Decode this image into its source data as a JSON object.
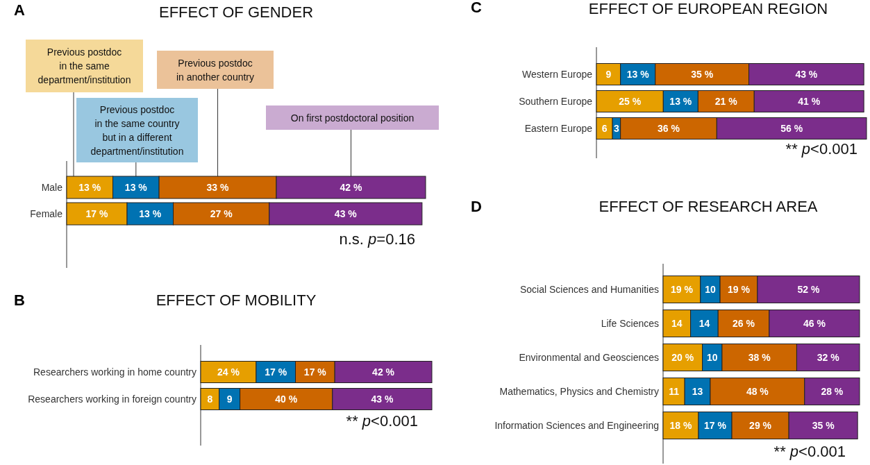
{
  "chart_data": [
    {
      "type": "bar",
      "orientation": "horizontal",
      "stacked": true,
      "title": "EFFECT OF GENDER",
      "legend": "top",
      "categories": [
        "Male",
        "Female"
      ],
      "annotations": [
        "A",
        "n.s. p=0.16"
      ],
      "series": [
        {
          "name": "Previous postdoc\nin the same\ndepartment/institution",
          "color": "#e69f00",
          "values": [
            13,
            17
          ],
          "value_labels": [
            "13 %",
            "17 %"
          ]
        },
        {
          "name": "Previous postdoc\nin the same country\nbut in a different\ndepartment/institution",
          "color": "#0072b2",
          "values": [
            13,
            13
          ],
          "value_labels": [
            "13 %",
            "13 %"
          ]
        },
        {
          "name": "Previous postdoc\nin another country",
          "color": "#cc6600",
          "values": [
            33,
            27
          ],
          "value_labels": [
            "33 %",
            "27 %"
          ]
        },
        {
          "name": "On first postdoctoral position",
          "color": "#7b2d8b",
          "values": [
            42,
            43
          ],
          "value_labels": [
            "42 %",
            "43 %"
          ]
        }
      ]
    },
    {
      "type": "bar",
      "orientation": "horizontal",
      "stacked": true,
      "title": "EFFECT OF MOBILITY",
      "categories": [
        "Researchers working in home country",
        "Researchers working in foreign country"
      ],
      "annotations": [
        "B",
        "** p<0.001"
      ],
      "series": [
        {
          "color": "#e69f00",
          "values": [
            24,
            8
          ],
          "value_labels": [
            "24 %",
            "8"
          ]
        },
        {
          "color": "#0072b2",
          "values": [
            17,
            9
          ],
          "value_labels": [
            "17 %",
            "9"
          ]
        },
        {
          "color": "#cc6600",
          "values": [
            17,
            40
          ],
          "value_labels": [
            "17 %",
            "40 %"
          ]
        },
        {
          "color": "#7b2d8b",
          "values": [
            42,
            43
          ],
          "value_labels": [
            "42 %",
            "43 %"
          ]
        }
      ]
    },
    {
      "type": "bar",
      "orientation": "horizontal",
      "stacked": true,
      "title": "EFFECT OF EUROPEAN REGION",
      "categories": [
        "Western Europe",
        "Southern Europe",
        "Eastern Europe"
      ],
      "annotations": [
        "C",
        "** p<0.001"
      ],
      "series": [
        {
          "color": "#e69f00",
          "values": [
            9,
            25,
            6
          ],
          "value_labels": [
            "9",
            "25 %",
            "6"
          ]
        },
        {
          "color": "#0072b2",
          "values": [
            13,
            13,
            3
          ],
          "value_labels": [
            "13 %",
            "13 %",
            "3"
          ]
        },
        {
          "color": "#cc6600",
          "values": [
            35,
            21,
            36
          ],
          "value_labels": [
            "35 %",
            "21 %",
            "36 %"
          ]
        },
        {
          "color": "#7b2d8b",
          "values": [
            43,
            41,
            56
          ],
          "value_labels": [
            "43 %",
            "41 %",
            "56 %"
          ]
        }
      ]
    },
    {
      "type": "bar",
      "orientation": "horizontal",
      "stacked": true,
      "title": "EFFECT OF RESEARCH AREA",
      "categories": [
        "Social Sciences and Humanities",
        "Life Sciences",
        "Environmental and Geosciences",
        "Mathematics, Physics and Chemistry",
        "Information Sciences and Engineering"
      ],
      "annotations": [
        "D",
        "** p<0.001"
      ],
      "series": [
        {
          "color": "#e69f00",
          "values": [
            19,
            14,
            20,
            11,
            18
          ],
          "value_labels": [
            "19 %",
            "14",
            "20 %",
            "11",
            "18 %"
          ]
        },
        {
          "color": "#0072b2",
          "values": [
            10,
            14,
            10,
            13,
            17
          ],
          "value_labels": [
            "10",
            "14",
            "10",
            "13",
            "17 %"
          ]
        },
        {
          "color": "#cc6600",
          "values": [
            19,
            26,
            38,
            48,
            29
          ],
          "value_labels": [
            "19 %",
            "26 %",
            "38 %",
            "48 %",
            "29 %"
          ]
        },
        {
          "color": "#7b2d8b",
          "values": [
            52,
            46,
            32,
            28,
            35
          ],
          "value_labels": [
            "52 %",
            "46 %",
            "32 %",
            "28 %",
            "35 %"
          ]
        }
      ]
    }
  ]
}
